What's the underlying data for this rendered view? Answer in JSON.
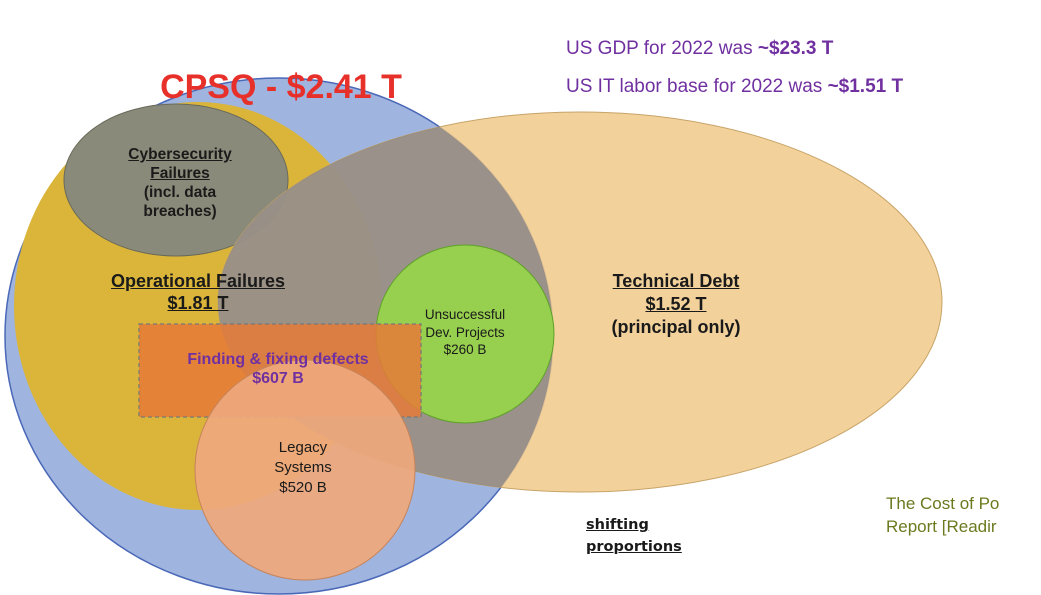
{
  "header": {
    "gdp_prefix": "US GDP for 2022 was ",
    "gdp_value": "~$23.3 T",
    "it_prefix": "US IT labor base for 2022 was ",
    "it_value": "~$1.51 T",
    "color": "#7030a0"
  },
  "cpsq": {
    "title": "CPSQ - $2.41 T",
    "color": "#e8302a",
    "fill": "#9fb4de",
    "stroke": "#4a68b8"
  },
  "cyber": {
    "lines": [
      "Cybersecurity",
      "Failures",
      "(incl. data",
      "breaches)"
    ],
    "fill": "#8a8a7a"
  },
  "operational": {
    "title": "Operational Failures",
    "value": "$1.81 T",
    "fill": "#dab53a"
  },
  "technical": {
    "title": "Technical Debt",
    "value": "$1.52 T",
    "note": "(principal only)",
    "fill": "#f1c98a"
  },
  "unsuccessful": {
    "lines": [
      "Unsuccessful",
      "Dev. Projects",
      "$260 B"
    ],
    "fill": "#97cf4e",
    "stroke": "#5ea228"
  },
  "defects": {
    "title": "Finding & fixing defects",
    "value": "$607 B",
    "fill": "#e57a38",
    "color": "#7030a0"
  },
  "legacy": {
    "lines": [
      "Legacy",
      "Systems",
      "$520 B"
    ],
    "fill": "#eea87c"
  },
  "shifting": {
    "lines": [
      "shifting",
      "proportions"
    ]
  },
  "source": {
    "lines": [
      "The Cost of Po",
      "Report [Readir"
    ],
    "color": "#6b7a1e"
  }
}
